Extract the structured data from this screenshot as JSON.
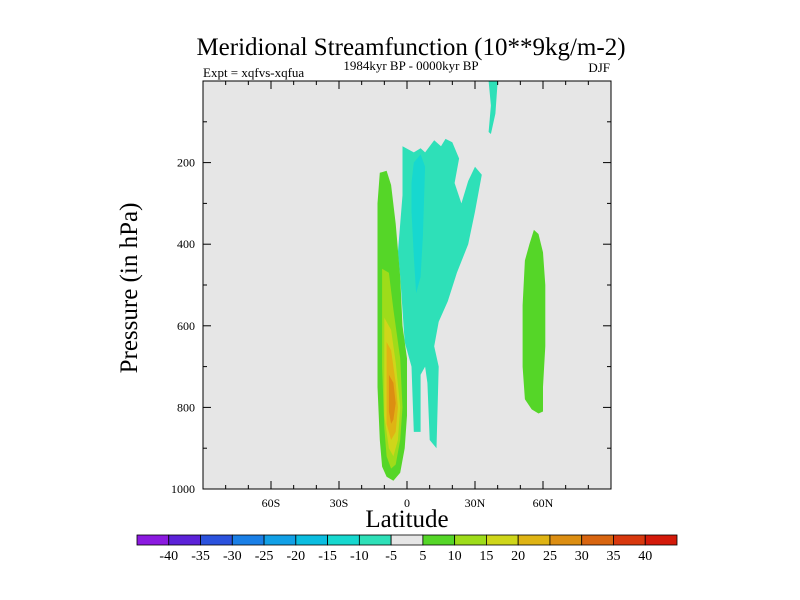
{
  "chart_data": {
    "type": "contour",
    "title": "Meridional Streamfunction (10**9kg/m-2)",
    "left_string": "Expt = xqfvs-xqfua",
    "center_string": "1984kyr BP - 0000kyr BP",
    "right_string": "DJF",
    "xlabel": "Latitude",
    "ylabel": "Pressure (in hPa)",
    "xlim": [
      -90,
      90
    ],
    "ylim": [
      1000,
      0
    ],
    "x_ticks": [
      {
        "value": -60,
        "label": "60S"
      },
      {
        "value": -30,
        "label": "30S"
      },
      {
        "value": 0,
        "label": "0"
      },
      {
        "value": 30,
        "label": "30N"
      },
      {
        "value": 60,
        "label": "60N"
      }
    ],
    "y_ticks": [
      {
        "value": 200,
        "label": "200"
      },
      {
        "value": 400,
        "label": "400"
      },
      {
        "value": 600,
        "label": "600"
      },
      {
        "value": 800,
        "label": "800"
      },
      {
        "value": 1000,
        "label": "1000"
      }
    ],
    "background_color": "#e6e6e6",
    "colorbar": {
      "levels": [
        "-40",
        "-35",
        "-30",
        "-25",
        "-20",
        "-15",
        "-10",
        "-5",
        "5",
        "10",
        "15",
        "20",
        "25",
        "30",
        "35",
        "40"
      ],
      "colors": [
        "#8b1ae0",
        "#5c22d8",
        "#2b52dd",
        "#1a7fe6",
        "#11a0e6",
        "#0bbde0",
        "#17d8cf",
        "#2ee0b8",
        "#e6e6e6",
        "#55d628",
        "#9edc1a",
        "#cfd61a",
        "#dfb414",
        "#dc8e12",
        "#d86510",
        "#d8380e",
        "#d41a0a"
      ]
    },
    "regions": [
      {
        "name": "NH Hadley cell core (negative)",
        "level_color": "#2ee0b8",
        "points": [
          [
            -2,
            160
          ],
          [
            3,
            175
          ],
          [
            6,
            165
          ],
          [
            8,
            175
          ],
          [
            12,
            145
          ],
          [
            15,
            160
          ],
          [
            17,
            142
          ],
          [
            20,
            150
          ],
          [
            23,
            190
          ],
          [
            21,
            250
          ],
          [
            24,
            300
          ],
          [
            27,
            245
          ],
          [
            30,
            210
          ],
          [
            33,
            230
          ],
          [
            30,
            320
          ],
          [
            27,
            400
          ],
          [
            22,
            470
          ],
          [
            18,
            540
          ],
          [
            14,
            590
          ],
          [
            12,
            650
          ],
          [
            14,
            700
          ],
          [
            13,
            900
          ],
          [
            10,
            880
          ],
          [
            9,
            740
          ],
          [
            8,
            700
          ],
          [
            6,
            720
          ],
          [
            6,
            860
          ],
          [
            3,
            860
          ],
          [
            2,
            700
          ],
          [
            -1,
            640
          ],
          [
            -3,
            480
          ],
          [
            -4,
            420
          ],
          [
            -2,
            280
          ],
          [
            -2,
            200
          ]
        ]
      },
      {
        "name": "NH cell inner (negative)",
        "level_color": "#17d8cf",
        "points": [
          [
            3,
            200
          ],
          [
            6,
            180
          ],
          [
            8,
            210
          ],
          [
            7,
            380
          ],
          [
            6,
            480
          ],
          [
            4,
            520
          ],
          [
            3,
            430
          ],
          [
            2,
            320
          ],
          [
            2,
            250
          ]
        ]
      },
      {
        "name": "SH cell (positive)",
        "level_color": "#55d628",
        "points": [
          [
            -12,
            225
          ],
          [
            -9,
            220
          ],
          [
            -7,
            255
          ],
          [
            -5,
            350
          ],
          [
            -3,
            480
          ],
          [
            -2,
            600
          ],
          [
            0,
            680
          ],
          [
            0,
            820
          ],
          [
            -1,
            900
          ],
          [
            -3,
            960
          ],
          [
            -6,
            980
          ],
          [
            -9,
            970
          ],
          [
            -11,
            945
          ],
          [
            -12,
            880
          ],
          [
            -13,
            750
          ],
          [
            -13,
            500
          ],
          [
            -13,
            300
          ]
        ]
      },
      {
        "name": "SH cell level 10",
        "level_color": "#9edc1a",
        "points": [
          [
            -11,
            460
          ],
          [
            -8,
            470
          ],
          [
            -6,
            560
          ],
          [
            -3,
            680
          ],
          [
            -2,
            800
          ],
          [
            -3,
            880
          ],
          [
            -5,
            940
          ],
          [
            -7,
            950
          ],
          [
            -9,
            920
          ],
          [
            -10,
            850
          ],
          [
            -11,
            700
          ]
        ]
      },
      {
        "name": "SH cell level 15",
        "level_color": "#cfd61a",
        "points": [
          [
            -10,
            580
          ],
          [
            -7,
            610
          ],
          [
            -5,
            690
          ],
          [
            -3,
            800
          ],
          [
            -4,
            880
          ],
          [
            -6,
            920
          ],
          [
            -8,
            900
          ],
          [
            -10,
            820
          ],
          [
            -10,
            680
          ]
        ]
      },
      {
        "name": "SH cell level 20",
        "level_color": "#dfb414",
        "points": [
          [
            -9,
            640
          ],
          [
            -7,
            660
          ],
          [
            -5,
            740
          ],
          [
            -4,
            800
          ],
          [
            -5,
            860
          ],
          [
            -7,
            880
          ],
          [
            -9,
            840
          ],
          [
            -9,
            720
          ]
        ]
      },
      {
        "name": "SH cell level 25",
        "level_color": "#dc8e12",
        "points": [
          [
            -8,
            720
          ],
          [
            -6,
            740
          ],
          [
            -5,
            790
          ],
          [
            -6,
            830
          ],
          [
            -7,
            840
          ],
          [
            -8,
            810
          ]
        ]
      },
      {
        "name": "NH midlatitude cell (positive)",
        "level_color": "#55d628",
        "points": [
          [
            52,
            440
          ],
          [
            54,
            400
          ],
          [
            56,
            365
          ],
          [
            58,
            375
          ],
          [
            60,
            420
          ],
          [
            61,
            500
          ],
          [
            61,
            650
          ],
          [
            60,
            750
          ],
          [
            60,
            810
          ],
          [
            58,
            815
          ],
          [
            55,
            805
          ],
          [
            52,
            780
          ],
          [
            51,
            700
          ],
          [
            51,
            550
          ]
        ]
      },
      {
        "name": "Upper NH sliver (negative)",
        "level_color": "#2ee0b8",
        "points": [
          [
            36,
            0
          ],
          [
            40,
            0
          ],
          [
            39,
            80
          ],
          [
            37,
            130
          ],
          [
            36,
            125
          ],
          [
            37,
            60
          ]
        ]
      }
    ]
  }
}
